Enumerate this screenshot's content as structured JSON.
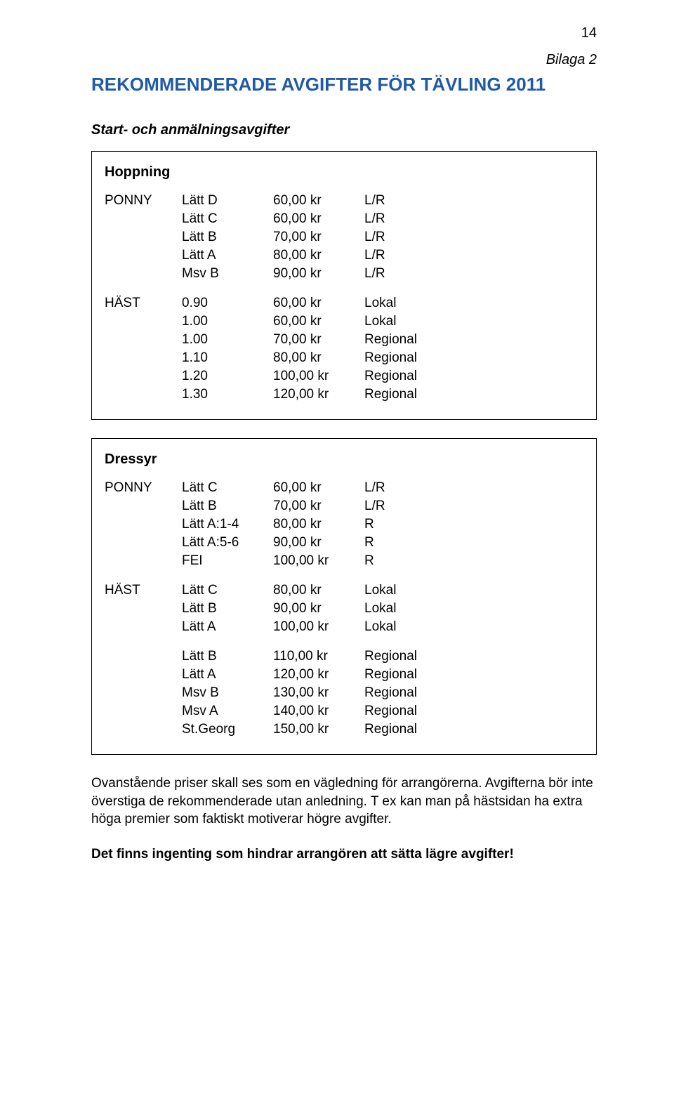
{
  "page_number": "14",
  "bilaga": "Bilaga 2",
  "title": "REKOMMENDERADE AVGIFTER FÖR TÄVLING 2011",
  "subtitle": "Start- och anmälningsavgifter",
  "box1": {
    "heading": "Hoppning",
    "group1_label": "PONNY",
    "group1_rows": [
      {
        "class": "Lätt D",
        "price": "60,00 kr",
        "scope": "L/R"
      },
      {
        "class": "Lätt C",
        "price": "60,00 kr",
        "scope": "L/R"
      },
      {
        "class": "Lätt B",
        "price": "70,00 kr",
        "scope": "L/R"
      },
      {
        "class": "Lätt A",
        "price": "80,00 kr",
        "scope": "L/R"
      },
      {
        "class": "Msv B",
        "price": "90,00 kr",
        "scope": "L/R"
      }
    ],
    "group2_label": "HÄST",
    "group2_rows": [
      {
        "class": "0.90",
        "price": "60,00 kr",
        "scope": "Lokal"
      },
      {
        "class": "1.00",
        "price": "60,00 kr",
        "scope": "Lokal"
      },
      {
        "class": "1.00",
        "price": "70,00 kr",
        "scope": "Regional"
      },
      {
        "class": "1.10",
        "price": "80,00 kr",
        "scope": "Regional"
      },
      {
        "class": "1.20",
        "price": "100,00 kr",
        "scope": "Regional"
      },
      {
        "class": "1.30",
        "price": "120,00 kr",
        "scope": "Regional"
      }
    ]
  },
  "box2": {
    "heading": "Dressyr",
    "group1_label": "PONNY",
    "group1_rows": [
      {
        "class": "Lätt C",
        "price": "60,00 kr",
        "scope": "L/R"
      },
      {
        "class": "Lätt B",
        "price": "70,00 kr",
        "scope": "L/R"
      },
      {
        "class": "Lätt A:1-4",
        "price": "80,00 kr",
        "scope": "R"
      },
      {
        "class": "Lätt A:5-6",
        "price": "90,00 kr",
        "scope": "R"
      },
      {
        "class": "FEI",
        "price": "100,00 kr",
        "scope": "R"
      }
    ],
    "group2_label": "HÄST",
    "group2_rows": [
      {
        "class": "Lätt C",
        "price": "80,00 kr",
        "scope": "Lokal"
      },
      {
        "class": "Lätt B",
        "price": "90,00 kr",
        "scope": "Lokal"
      },
      {
        "class": "Lätt A",
        "price": "100,00 kr",
        "scope": "Lokal"
      }
    ],
    "group3_rows": [
      {
        "class": "Lätt B",
        "price": "110,00 kr",
        "scope": "Regional"
      },
      {
        "class": "Lätt A",
        "price": "120,00 kr",
        "scope": "Regional"
      },
      {
        "class": "Msv B",
        "price": "130,00 kr",
        "scope": "Regional"
      },
      {
        "class": "Msv A",
        "price": "140,00 kr",
        "scope": "Regional"
      },
      {
        "class": "St.Georg",
        "price": "150,00 kr",
        "scope": "Regional"
      }
    ]
  },
  "paragraph": "Ovanstående priser skall ses som en vägledning för arrangörerna. Avgifterna bör inte överstiga de rekommenderade utan anledning. T ex kan man på hästsidan ha extra höga premier som faktiskt motiverar högre avgifter.",
  "closing": "Det finns ingenting som hindrar arrangören att sätta lägre avgifter!"
}
